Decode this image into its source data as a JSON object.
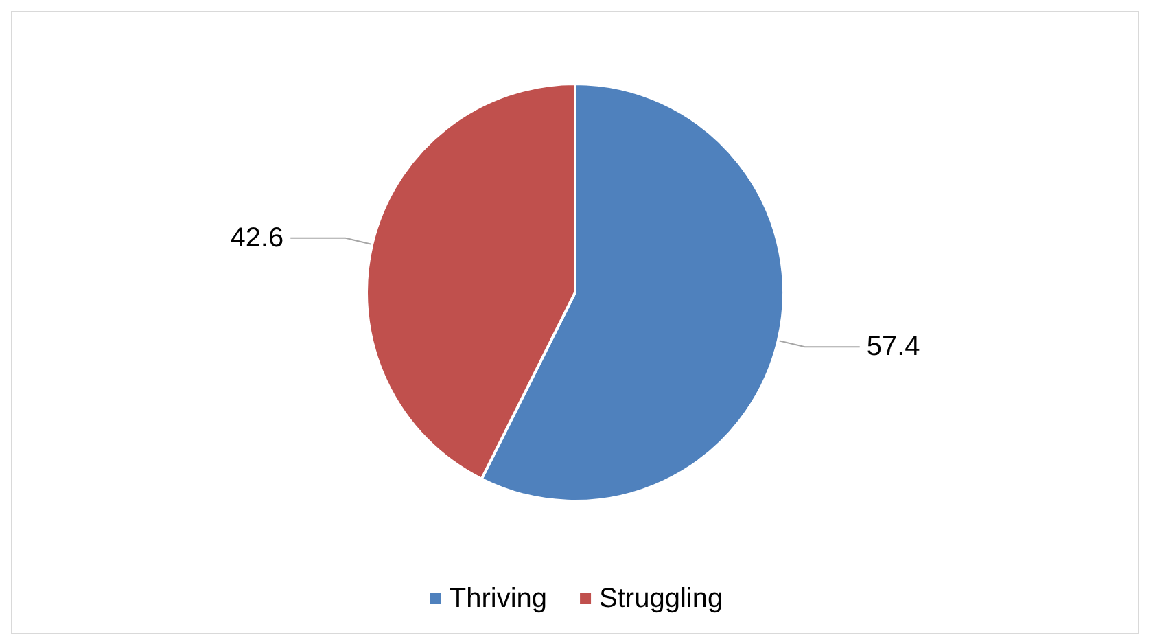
{
  "chart_data": {
    "type": "pie",
    "categories": [
      "Thriving",
      "Struggling"
    ],
    "values": [
      57.4,
      42.6
    ],
    "colors": [
      "#4f81bd",
      "#c0504d"
    ],
    "data_labels": true,
    "legend": "bottom"
  }
}
